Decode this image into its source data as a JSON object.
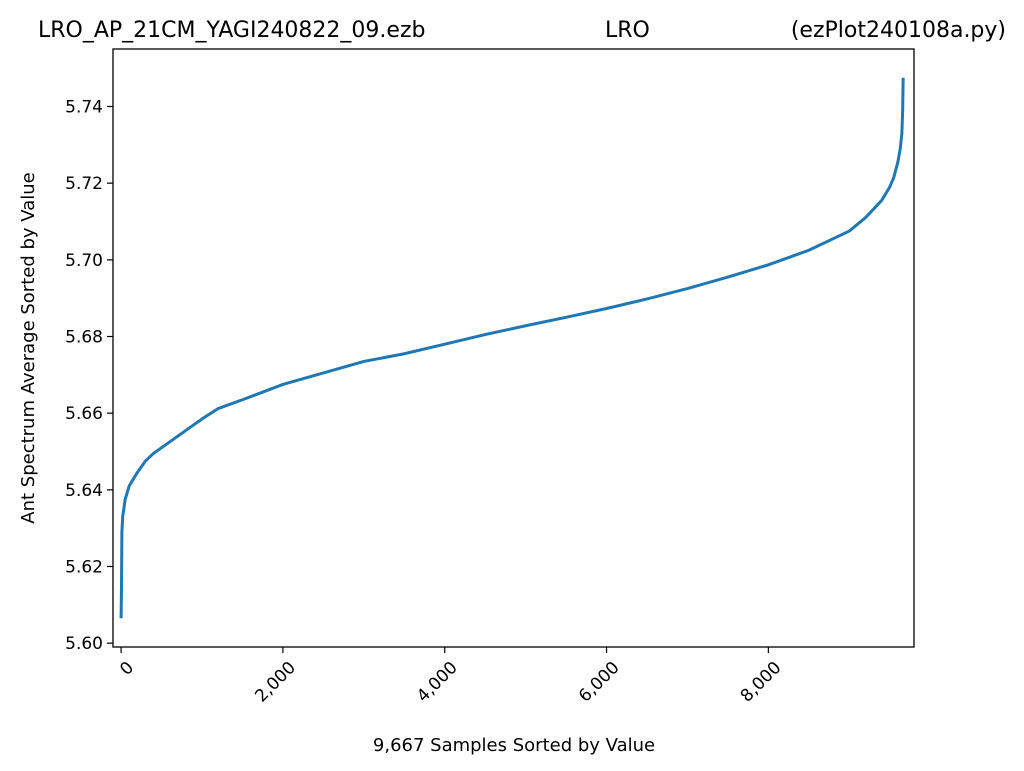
{
  "header": {
    "left": "LRO_AP_21CM_YAGI240822_09.ezb",
    "center": "LRO",
    "right": "(ezPlot240108a.py)"
  },
  "chart_data": {
    "type": "line",
    "xlabel": "9,667 Samples Sorted by Value",
    "ylabel": "Ant Spectrum Average Sorted by Value",
    "xlim": [
      -100,
      9800
    ],
    "ylim": [
      5.599,
      5.755
    ],
    "x_ticks": [
      0,
      2000,
      4000,
      6000,
      8000
    ],
    "x_tick_labels": [
      "0",
      "2,000",
      "4,000",
      "6,000",
      "8,000"
    ],
    "y_ticks": [
      5.6,
      5.62,
      5.64,
      5.66,
      5.68,
      5.7,
      5.72,
      5.74
    ],
    "y_tick_labels": [
      "5.60",
      "5.62",
      "5.64",
      "5.66",
      "5.68",
      "5.70",
      "5.72",
      "5.74"
    ],
    "grid": false,
    "line_color": "#1f77b4",
    "series": [
      {
        "x": [
          0,
          5,
          10,
          20,
          50,
          100,
          200,
          300,
          400,
          500,
          600,
          800,
          1000,
          1200,
          1500,
          2000,
          2500,
          3000,
          3500,
          4000,
          4500,
          5000,
          5500,
          6000,
          6500,
          7000,
          7500,
          8000,
          8500,
          9000,
          9200,
          9400,
          9500,
          9550,
          9600,
          9630,
          9650,
          9660,
          9666
        ],
        "y": [
          5.6065,
          5.615,
          5.629,
          5.633,
          5.6375,
          5.641,
          5.6445,
          5.6475,
          5.6495,
          5.651,
          5.6525,
          5.6555,
          5.6585,
          5.6612,
          5.6635,
          5.6675,
          5.6705,
          5.6735,
          5.6755,
          5.678,
          5.6805,
          5.6828,
          5.685,
          5.6873,
          5.6898,
          5.6925,
          5.6955,
          5.6987,
          5.7025,
          5.7075,
          5.711,
          5.7155,
          5.719,
          5.7215,
          5.7255,
          5.729,
          5.733,
          5.739,
          5.7475
        ]
      }
    ]
  }
}
